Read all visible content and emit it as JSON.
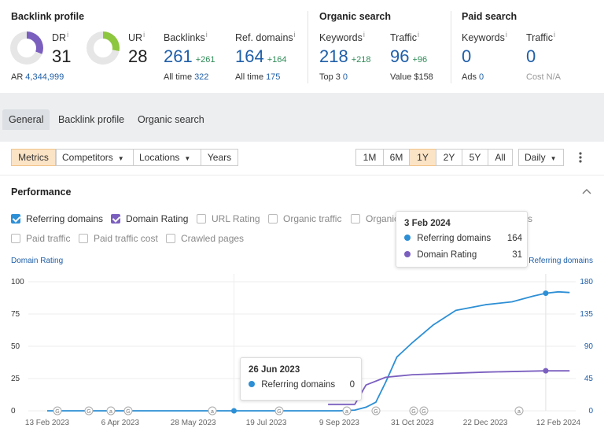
{
  "backlink_profile": {
    "title": "Backlink profile",
    "dr": {
      "label": "DR",
      "info": "i",
      "value": "31",
      "fill_percent": 31,
      "color": "#7b5fbf"
    },
    "ur": {
      "label": "UR",
      "info": "i",
      "value": "28",
      "fill_percent": 28,
      "color": "#8dc63f"
    },
    "ar": {
      "label": "AR",
      "value": "4,344,999"
    },
    "backlinks": {
      "label": "Backlinks",
      "info": "i",
      "value": "261",
      "delta": "+261",
      "sub_label": "All time",
      "sub_value": "322"
    },
    "ref_domains": {
      "label": "Ref. domains",
      "info": "i",
      "value": "164",
      "delta": "+164",
      "sub_label": "All time",
      "sub_value": "175"
    }
  },
  "organic_search": {
    "title": "Organic search",
    "keywords": {
      "label": "Keywords",
      "info": "i",
      "value": "218",
      "delta": "+218",
      "sub_label": "Top 3",
      "sub_value": "0"
    },
    "traffic": {
      "label": "Traffic",
      "info": "i",
      "value": "96",
      "delta": "+96",
      "sub_label": "Value",
      "sub_value": "$158"
    }
  },
  "paid_search": {
    "title": "Paid search",
    "keywords": {
      "label": "Keywords",
      "info": "i",
      "value": "0",
      "sub_label": "Ads",
      "sub_value": "0"
    },
    "traffic": {
      "label": "Traffic",
      "info": "i",
      "value": "0",
      "sub_label": "Cost",
      "sub_value": "N/A"
    }
  },
  "tabs": [
    "General",
    "Backlink profile",
    "Organic search"
  ],
  "toolbar": {
    "metrics": "Metrics",
    "competitors": "Competitors",
    "locations": "Locations",
    "years": "Years",
    "ranges": [
      "1M",
      "6M",
      "1Y",
      "2Y",
      "5Y",
      "All"
    ],
    "selected_range": "1Y",
    "interval": "Daily",
    "more_icon": "kebab-icon"
  },
  "performance": {
    "title": "Performance",
    "collapse_icon": "chevron-up-icon",
    "checkboxes_row1": [
      {
        "label": "Referring domains",
        "checked": true,
        "color": "#2d8fd5"
      },
      {
        "label": "Domain Rating",
        "checked": true,
        "color": "#7b5fbf"
      },
      {
        "label": "URL Rating",
        "checked": false
      },
      {
        "label": "Organic traffic",
        "checked": false
      },
      {
        "label": "Organic",
        "checked": false
      },
      {
        "label": "s",
        "checked": false
      }
    ],
    "checkboxes_row2": [
      {
        "label": "Paid traffic",
        "checked": false
      },
      {
        "label": "Paid traffic cost",
        "checked": false
      },
      {
        "label": "Crawled pages",
        "checked": false
      }
    ]
  },
  "tooltip_main": {
    "date": "3 Feb 2024",
    "rows": [
      {
        "label": "Referring domains",
        "value": "164",
        "color": "#2d8fd5"
      },
      {
        "label": "Domain Rating",
        "value": "31",
        "color": "#7b5fbf"
      }
    ]
  },
  "tooltip_secondary": {
    "date": "26 Jun 2023",
    "rows": [
      {
        "label": "Referring domains",
        "value": "0",
        "color": "#2d8fd5"
      }
    ]
  },
  "chart_data": {
    "type": "line",
    "left_axis_label": "Domain Rating",
    "right_axis_label": "Referring domains",
    "left_ticks": [
      "100",
      "75",
      "50",
      "25",
      "0"
    ],
    "left_ylim": [
      0,
      100
    ],
    "right_ticks": [
      "180",
      "135",
      "90",
      "45",
      "0"
    ],
    "right_ylim": [
      0,
      180
    ],
    "x_ticks": [
      "13 Feb 2023",
      "6 Apr 2023",
      "28 May 2023",
      "19 Jul 2023",
      "9 Sep 2023",
      "31 Oct 2023",
      "22 Dec 2023",
      "12 Feb 2024"
    ],
    "annotation_markers": [
      "G",
      "G",
      "a",
      "G",
      "a",
      "G",
      "a",
      "G",
      "G",
      "G",
      "a"
    ],
    "series": [
      {
        "name": "Referring domains",
        "axis": "right",
        "color": "#2d8fd5",
        "points": [
          [
            "13 Feb 2023",
            0
          ],
          [
            "9 Sep 2023",
            0
          ],
          [
            "20 Sep 2023",
            1
          ],
          [
            "28 Sep 2023",
            5
          ],
          [
            "5 Oct 2023",
            12
          ],
          [
            "12 Oct 2023",
            40
          ],
          [
            "20 Oct 2023",
            75
          ],
          [
            "31 Oct 2023",
            95
          ],
          [
            "15 Nov 2023",
            120
          ],
          [
            "1 Dec 2023",
            140
          ],
          [
            "22 Dec 2023",
            148
          ],
          [
            "10 Jan 2024",
            152
          ],
          [
            "25 Jan 2024",
            160
          ],
          [
            "3 Feb 2024",
            164
          ],
          [
            "12 Feb 2024",
            166
          ],
          [
            "20 Feb 2024",
            165
          ]
        ]
      },
      {
        "name": "Domain Rating",
        "axis": "left",
        "color": "#7b5fbf",
        "points": [
          [
            "1 Sep 2023",
            5
          ],
          [
            "20 Sep 2023",
            5
          ],
          [
            "28 Sep 2023",
            20
          ],
          [
            "12 Oct 2023",
            26
          ],
          [
            "31 Oct 2023",
            28
          ],
          [
            "22 Dec 2023",
            30
          ],
          [
            "3 Feb 2024",
            31
          ],
          [
            "20 Feb 2024",
            31
          ]
        ]
      }
    ]
  }
}
